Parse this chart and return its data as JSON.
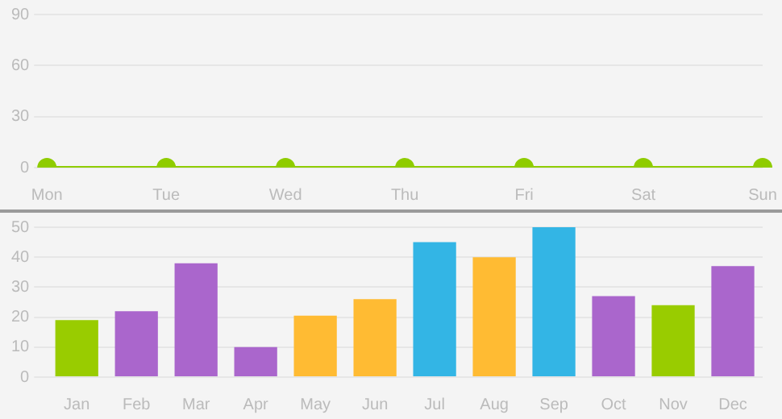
{
  "chart_data": [
    {
      "type": "line",
      "categories": [
        "Mon",
        "Tue",
        "Wed",
        "Thu",
        "Fri",
        "Sat",
        "Sun"
      ],
      "series": [
        {
          "color": "#8fcc00",
          "values": [
            0,
            0,
            0,
            0,
            0,
            0,
            0
          ]
        }
      ],
      "ylim": [
        0,
        90
      ],
      "yticks": [
        0,
        30,
        60,
        90
      ],
      "grid": "y",
      "marker": "circle",
      "legend": false
    },
    {
      "type": "bar",
      "categories": [
        "Jan",
        "Feb",
        "Mar",
        "Apr",
        "May",
        "Jun",
        "Jul",
        "Aug",
        "Sep",
        "Oct",
        "Nov",
        "Dec"
      ],
      "values": [
        19,
        22,
        38,
        10,
        20.5,
        26,
        45,
        40,
        50,
        27,
        24,
        37
      ],
      "colors": [
        "#99cc00",
        "#aa66cc",
        "#aa66cc",
        "#aa66cc",
        "#ffbb33",
        "#ffbb33",
        "#33b5e5",
        "#ffbb33",
        "#33b5e5",
        "#aa66cc",
        "#99cc00",
        "#aa66cc"
      ],
      "ylim": [
        0,
        50
      ],
      "yticks": [
        0,
        10,
        20,
        30,
        40,
        50
      ],
      "grid": "y",
      "legend": false
    }
  ]
}
